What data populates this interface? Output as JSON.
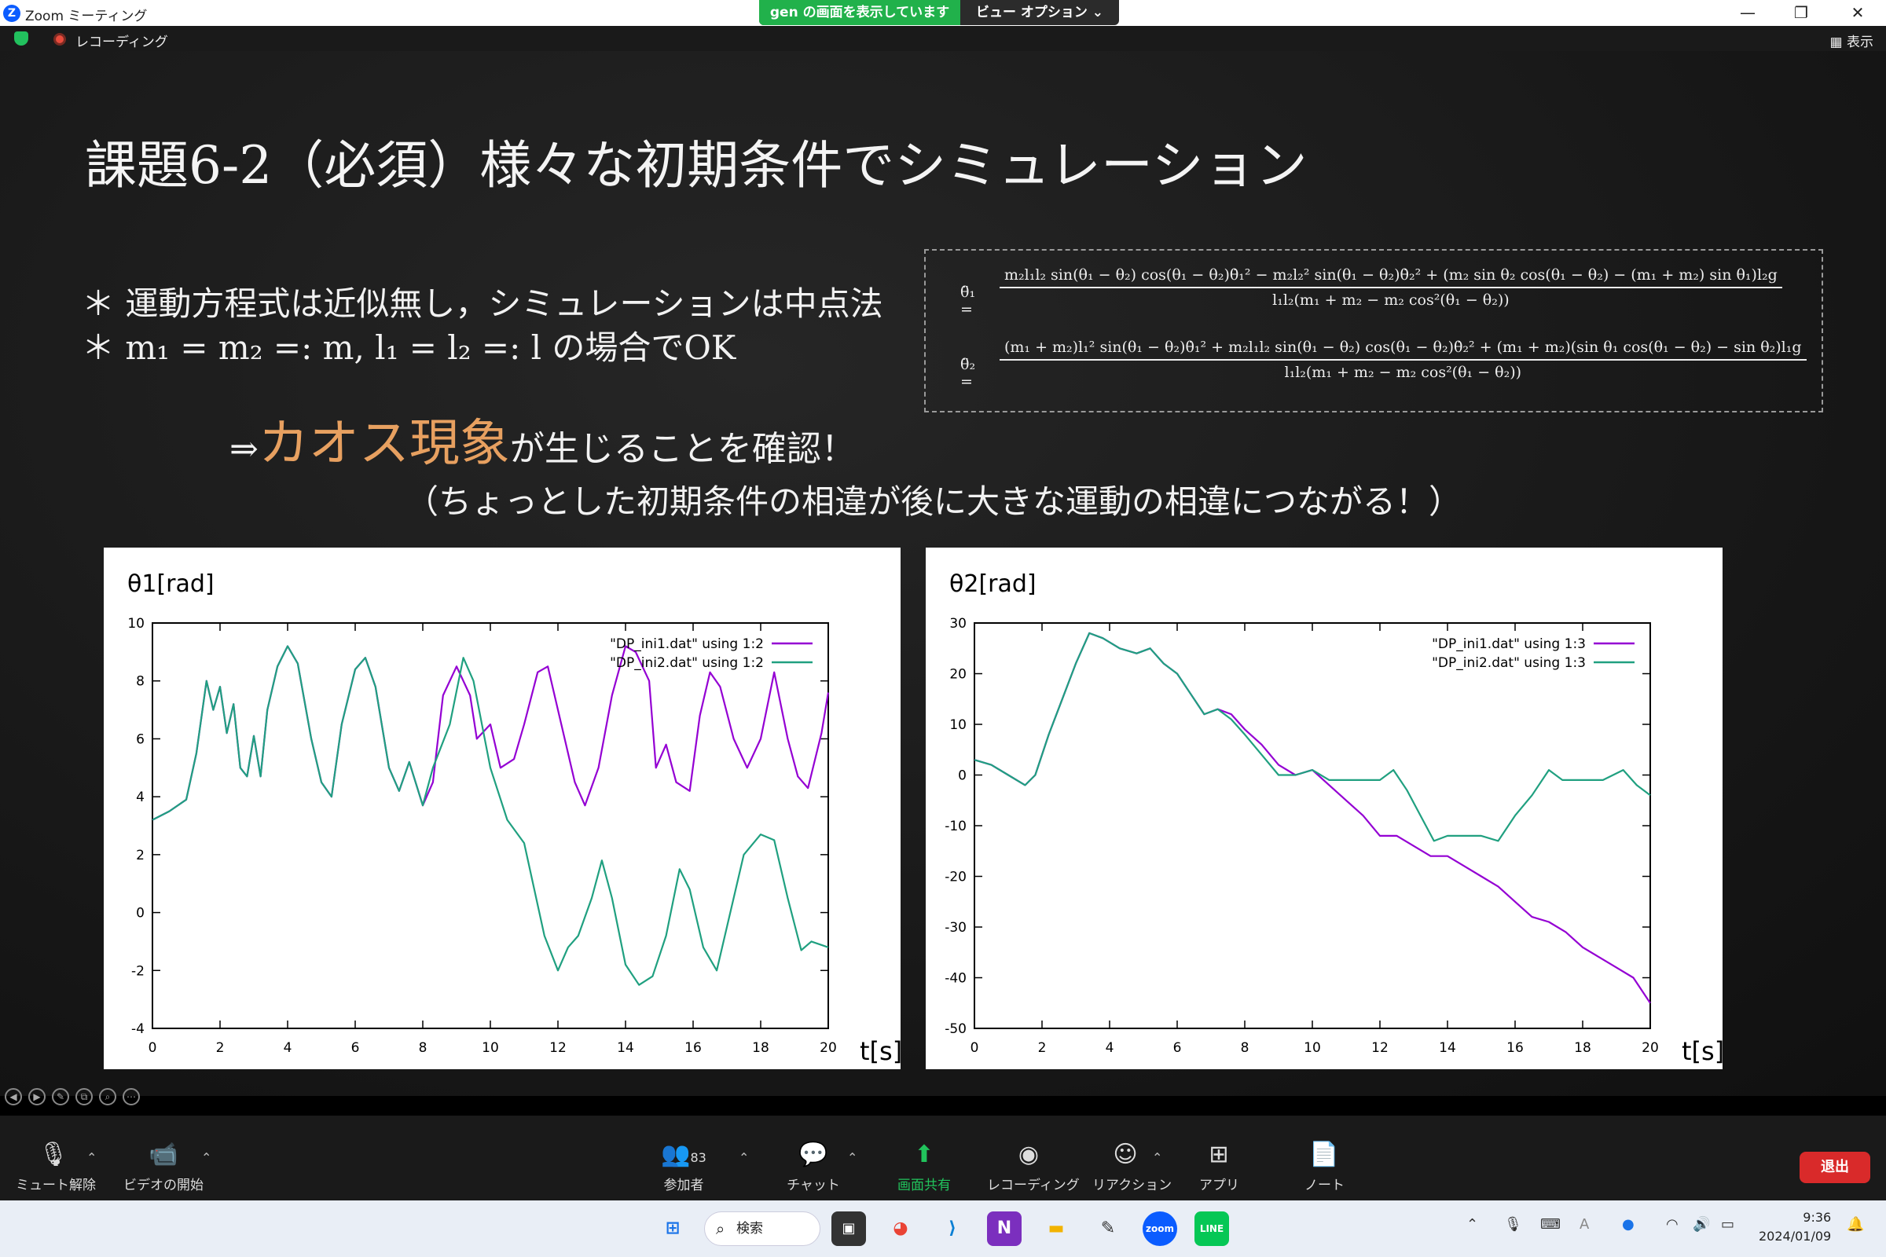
{
  "window": {
    "title": "Zoom ミーティング",
    "share_banner_text": "gen の画面を表示しています",
    "view_options_label": "ビュー オプション ⌄",
    "minimize": "—",
    "restore": "❐",
    "close": "✕"
  },
  "recording": {
    "label": "レコーディング",
    "display_label": "表示"
  },
  "slide": {
    "title": "課題6-2（必須）様々な初期条件でシミュレーション",
    "bullet1": "＊ 運動方程式は近似無し，シミュレーションは中点法",
    "bullet2": "＊ m₁ = m₂ =: m,  l₁ = l₂ =: l  の場合でOK",
    "arrow_prefix": "⇒",
    "chaos_word": "カオス現象",
    "arrow_suffix": "が生じることを確認！",
    "paren_line": "（ちょっとした初期条件の相違が後に大きな運動の相違につながる！）",
    "eq1_lhs": "θ̈₁ =",
    "eq1_num": "m₂l₁l₂ sin(θ₁ − θ₂) cos(θ₁ − θ₂)θ̇₁² − m₂l₂² sin(θ₁ − θ₂)θ̇₂² + (m₂ sin θ₂ cos(θ₁ − θ₂) − (m₁ + m₂) sin θ₁)l₂g",
    "eq1_den": "l₁l₂(m₁ + m₂ − m₂ cos²(θ₁ − θ₂))",
    "eq2_lhs": "θ̈₂ =",
    "eq2_num": "(m₁ + m₂)l₁² sin(θ₁ − θ₂)θ̇₁² + m₂l₁l₂ sin(θ₁ − θ₂) cos(θ₁ − θ₂)θ̇₂² + (m₁ + m₂)(sin θ₁ cos(θ₁ − θ₂) − sin θ₂)l₁g",
    "eq2_den": "l₁l₂(m₁ + m₂ − m₂ cos²(θ₁ − θ₂))"
  },
  "chart_data": [
    {
      "type": "line",
      "ylabel": "θ1[rad]",
      "xlabel": "t[s]",
      "xlim": [
        0,
        20
      ],
      "ylim": [
        -4,
        10
      ],
      "xticks": [
        0,
        2,
        4,
        6,
        8,
        10,
        12,
        14,
        16,
        18,
        20
      ],
      "yticks": [
        -4,
        -2,
        0,
        2,
        4,
        6,
        8,
        10
      ],
      "legend_position": "top-right",
      "series": [
        {
          "name": "\"DP_ini1.dat\" using 1:2",
          "color": "#9400d3",
          "points": [
            [
              0,
              3.2
            ],
            [
              0.5,
              3.5
            ],
            [
              1,
              3.9
            ],
            [
              1.3,
              5.5
            ],
            [
              1.6,
              8.0
            ],
            [
              1.8,
              7.0
            ],
            [
              2.0,
              7.8
            ],
            [
              2.2,
              6.2
            ],
            [
              2.4,
              7.2
            ],
            [
              2.6,
              5.0
            ],
            [
              2.8,
              4.7
            ],
            [
              3.0,
              6.1
            ],
            [
              3.2,
              4.7
            ],
            [
              3.4,
              7.0
            ],
            [
              3.7,
              8.5
            ],
            [
              4.0,
              9.2
            ],
            [
              4.3,
              8.6
            ],
            [
              4.7,
              6.0
            ],
            [
              5.0,
              4.5
            ],
            [
              5.3,
              4.0
            ],
            [
              5.6,
              6.5
            ],
            [
              6.0,
              8.4
            ],
            [
              6.3,
              8.8
            ],
            [
              6.6,
              7.8
            ],
            [
              7.0,
              5.0
            ],
            [
              7.3,
              4.2
            ],
            [
              7.6,
              5.2
            ],
            [
              8.0,
              3.7
            ],
            [
              8.3,
              4.5
            ],
            [
              8.6,
              7.5
            ],
            [
              9.0,
              8.5
            ],
            [
              9.4,
              7.5
            ],
            [
              9.6,
              6.0
            ],
            [
              10.0,
              6.5
            ],
            [
              10.3,
              5.0
            ],
            [
              10.7,
              5.3
            ],
            [
              11.0,
              6.5
            ],
            [
              11.4,
              8.3
            ],
            [
              11.7,
              8.5
            ],
            [
              12.1,
              6.5
            ],
            [
              12.5,
              4.5
            ],
            [
              12.8,
              3.7
            ],
            [
              13.2,
              5.0
            ],
            [
              13.6,
              7.5
            ],
            [
              14.0,
              9.2
            ],
            [
              14.3,
              9.0
            ],
            [
              14.7,
              8.0
            ],
            [
              14.9,
              5.0
            ],
            [
              15.2,
              5.8
            ],
            [
              15.5,
              4.5
            ],
            [
              15.9,
              4.2
            ],
            [
              16.2,
              6.8
            ],
            [
              16.5,
              8.3
            ],
            [
              16.8,
              7.8
            ],
            [
              17.2,
              6.0
            ],
            [
              17.6,
              5.0
            ],
            [
              18.0,
              6.0
            ],
            [
              18.4,
              8.3
            ],
            [
              18.8,
              6.0
            ],
            [
              19.1,
              4.7
            ],
            [
              19.4,
              4.3
            ],
            [
              19.8,
              6.2
            ],
            [
              20.0,
              7.6
            ]
          ]
        },
        {
          "name": "\"DP_ini2.dat\" using 1:2",
          "color": "#20a080",
          "points": [
            [
              0,
              3.2
            ],
            [
              0.5,
              3.5
            ],
            [
              1,
              3.9
            ],
            [
              1.3,
              5.5
            ],
            [
              1.6,
              8.0
            ],
            [
              1.8,
              7.0
            ],
            [
              2.0,
              7.8
            ],
            [
              2.2,
              6.2
            ],
            [
              2.4,
              7.2
            ],
            [
              2.6,
              5.0
            ],
            [
              2.8,
              4.7
            ],
            [
              3.0,
              6.1
            ],
            [
              3.2,
              4.7
            ],
            [
              3.4,
              7.0
            ],
            [
              3.7,
              8.5
            ],
            [
              4.0,
              9.2
            ],
            [
              4.3,
              8.6
            ],
            [
              4.7,
              6.0
            ],
            [
              5.0,
              4.5
            ],
            [
              5.3,
              4.0
            ],
            [
              5.6,
              6.5
            ],
            [
              6.0,
              8.4
            ],
            [
              6.3,
              8.8
            ],
            [
              6.6,
              7.8
            ],
            [
              7.0,
              5.0
            ],
            [
              7.3,
              4.2
            ],
            [
              7.6,
              5.2
            ],
            [
              8.0,
              3.7
            ],
            [
              8.3,
              5.0
            ],
            [
              8.8,
              6.5
            ],
            [
              9.2,
              8.8
            ],
            [
              9.5,
              8.0
            ],
            [
              10.0,
              5.0
            ],
            [
              10.5,
              3.2
            ],
            [
              11.0,
              2.4
            ],
            [
              11.3,
              0.8
            ],
            [
              11.6,
              -0.8
            ],
            [
              12.0,
              -2.0
            ],
            [
              12.3,
              -1.2
            ],
            [
              12.6,
              -0.8
            ],
            [
              13.0,
              0.5
            ],
            [
              13.3,
              1.8
            ],
            [
              13.6,
              0.5
            ],
            [
              14.0,
              -1.8
            ],
            [
              14.4,
              -2.5
            ],
            [
              14.8,
              -2.2
            ],
            [
              15.2,
              -0.8
            ],
            [
              15.6,
              1.5
            ],
            [
              15.9,
              0.8
            ],
            [
              16.3,
              -1.2
            ],
            [
              16.7,
              -2.0
            ],
            [
              17.0,
              -0.5
            ],
            [
              17.5,
              2.0
            ],
            [
              18.0,
              2.7
            ],
            [
              18.4,
              2.5
            ],
            [
              18.8,
              0.5
            ],
            [
              19.2,
              -1.3
            ],
            [
              19.5,
              -1.0
            ],
            [
              20.0,
              -1.2
            ]
          ]
        }
      ]
    },
    {
      "type": "line",
      "ylabel": "θ2[rad]",
      "xlabel": "t[s]",
      "xlim": [
        0,
        20
      ],
      "ylim": [
        -50,
        30
      ],
      "xticks": [
        0,
        2,
        4,
        6,
        8,
        10,
        12,
        14,
        16,
        18,
        20
      ],
      "yticks": [
        -50,
        -40,
        -30,
        -20,
        -10,
        0,
        10,
        20,
        30
      ],
      "legend_position": "top-right",
      "series": [
        {
          "name": "\"DP_ini1.dat\" using 1:3",
          "color": "#9400d3",
          "points": [
            [
              0,
              3
            ],
            [
              0.5,
              2
            ],
            [
              1.0,
              0
            ],
            [
              1.5,
              -2
            ],
            [
              1.8,
              0
            ],
            [
              2.2,
              8
            ],
            [
              2.6,
              15
            ],
            [
              3.0,
              22
            ],
            [
              3.4,
              28
            ],
            [
              3.8,
              27
            ],
            [
              4.3,
              25
            ],
            [
              4.8,
              24
            ],
            [
              5.2,
              25
            ],
            [
              5.6,
              22
            ],
            [
              6.0,
              20
            ],
            [
              6.4,
              16
            ],
            [
              6.8,
              12
            ],
            [
              7.2,
              13
            ],
            [
              7.6,
              12
            ],
            [
              8.0,
              9
            ],
            [
              8.5,
              6
            ],
            [
              9.0,
              2
            ],
            [
              9.5,
              0
            ],
            [
              10.0,
              1
            ],
            [
              10.5,
              -2
            ],
            [
              11.0,
              -5
            ],
            [
              11.5,
              -8
            ],
            [
              12.0,
              -12
            ],
            [
              12.5,
              -12
            ],
            [
              13.0,
              -14
            ],
            [
              13.5,
              -16
            ],
            [
              14.0,
              -16
            ],
            [
              14.5,
              -18
            ],
            [
              15.0,
              -20
            ],
            [
              15.5,
              -22
            ],
            [
              16.0,
              -25
            ],
            [
              16.5,
              -28
            ],
            [
              17.0,
              -29
            ],
            [
              17.5,
              -31
            ],
            [
              18.0,
              -34
            ],
            [
              18.5,
              -36
            ],
            [
              19.0,
              -38
            ],
            [
              19.5,
              -40
            ],
            [
              20.0,
              -45
            ]
          ]
        },
        {
          "name": "\"DP_ini2.dat\" using 1:3",
          "color": "#20a080",
          "points": [
            [
              0,
              3
            ],
            [
              0.5,
              2
            ],
            [
              1.0,
              0
            ],
            [
              1.5,
              -2
            ],
            [
              1.8,
              0
            ],
            [
              2.2,
              8
            ],
            [
              2.6,
              15
            ],
            [
              3.0,
              22
            ],
            [
              3.4,
              28
            ],
            [
              3.8,
              27
            ],
            [
              4.3,
              25
            ],
            [
              4.8,
              24
            ],
            [
              5.2,
              25
            ],
            [
              5.6,
              22
            ],
            [
              6.0,
              20
            ],
            [
              6.4,
              16
            ],
            [
              6.8,
              12
            ],
            [
              7.2,
              13
            ],
            [
              7.6,
              11
            ],
            [
              8.0,
              8
            ],
            [
              8.5,
              4
            ],
            [
              9.0,
              0
            ],
            [
              9.5,
              0
            ],
            [
              10.0,
              1
            ],
            [
              10.5,
              -1
            ],
            [
              11.0,
              -1
            ],
            [
              11.5,
              -1
            ],
            [
              12.0,
              -1
            ],
            [
              12.4,
              1
            ],
            [
              12.8,
              -3
            ],
            [
              13.2,
              -8
            ],
            [
              13.6,
              -13
            ],
            [
              14.0,
              -12
            ],
            [
              14.5,
              -12
            ],
            [
              15.0,
              -12
            ],
            [
              15.5,
              -13
            ],
            [
              16.0,
              -8
            ],
            [
              16.5,
              -4
            ],
            [
              17.0,
              1
            ],
            [
              17.4,
              -1
            ],
            [
              18.0,
              -1
            ],
            [
              18.6,
              -1
            ],
            [
              19.2,
              1
            ],
            [
              19.6,
              -2
            ],
            [
              20.0,
              -4
            ]
          ]
        }
      ]
    }
  ],
  "toolbar": {
    "mute": "ミュート解除",
    "video": "ビデオの開始",
    "participants": "参加者",
    "participants_count": "83",
    "chat": "チャット",
    "share": "画面共有",
    "record": "レコーディング",
    "reactions": "リアクション",
    "apps": "アプリ",
    "notes": "ノート",
    "leave": "退出"
  },
  "taskbar": {
    "search_placeholder": "検索",
    "time": "9:36",
    "date": "2024/01/09",
    "zoom_label": "zoom",
    "line_label": "LINE"
  }
}
